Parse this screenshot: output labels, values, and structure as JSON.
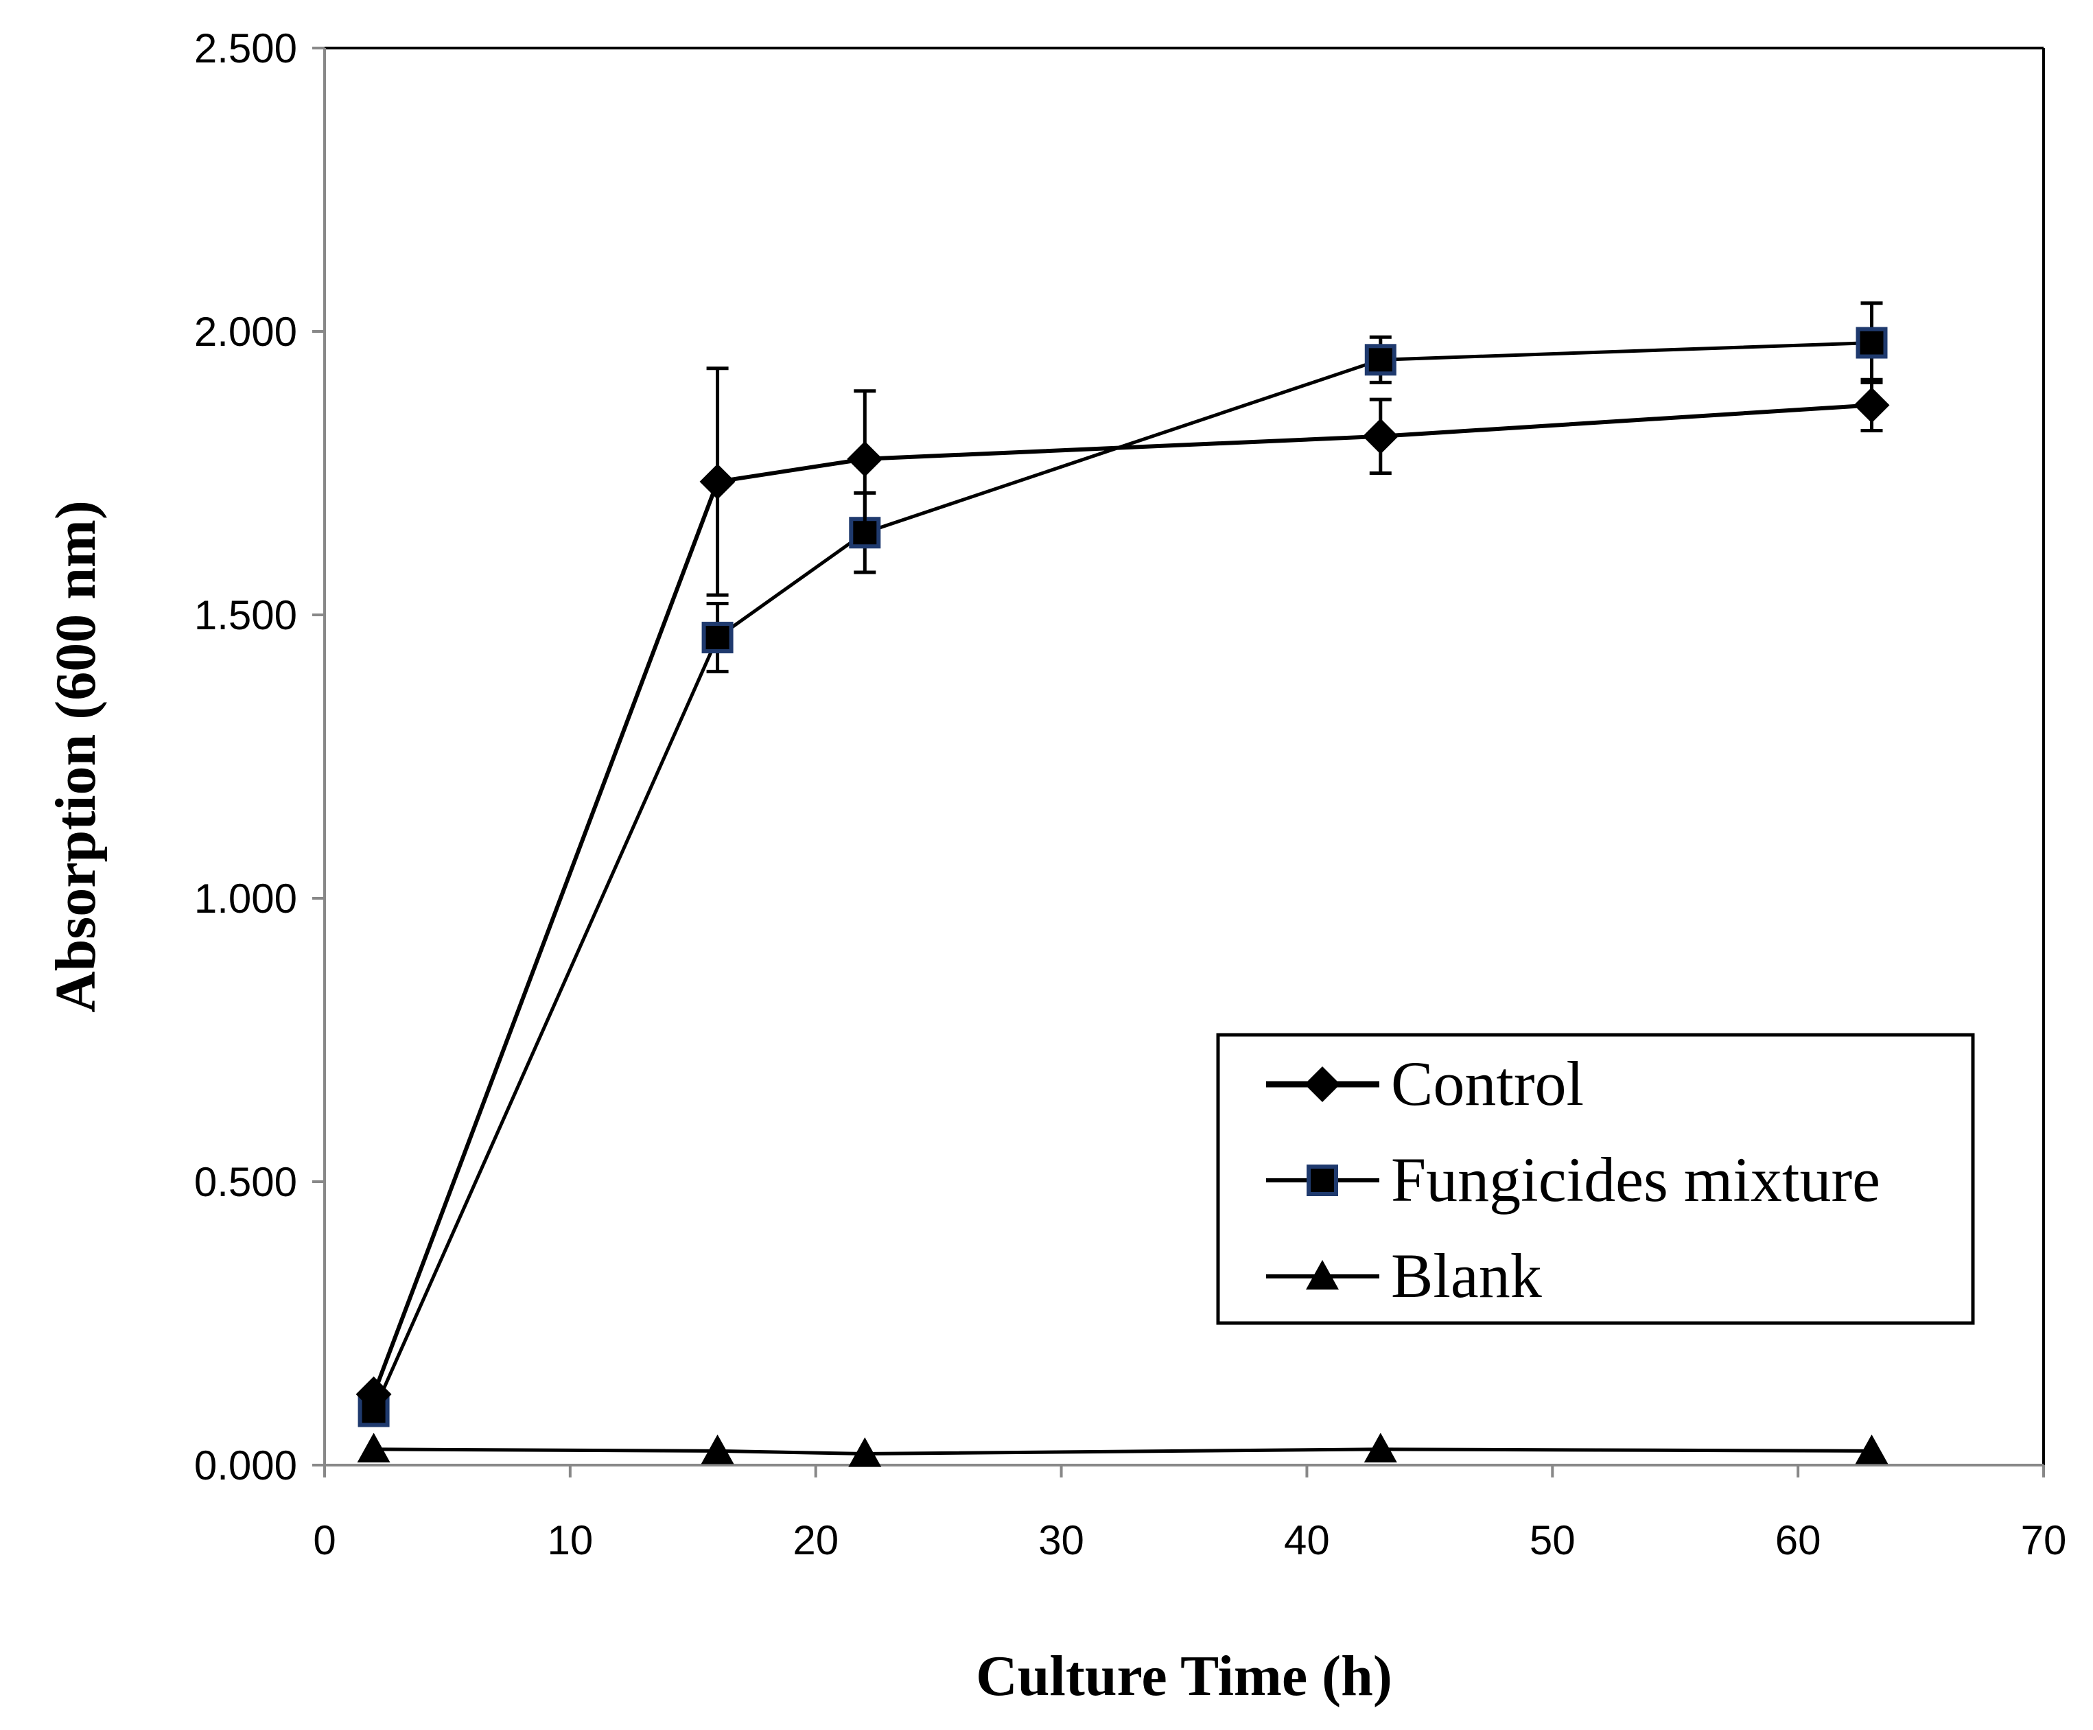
{
  "chart_data": {
    "type": "line",
    "title": "",
    "xlabel": "Culture Time (h)",
    "ylabel": "Absorption (600 nm)",
    "xlim": [
      0,
      70
    ],
    "ylim": [
      0,
      2.5
    ],
    "x_ticks": [
      0,
      10,
      20,
      30,
      40,
      50,
      60,
      70
    ],
    "y_ticks": [
      0,
      0.5,
      1.0,
      1.5,
      2.0,
      2.5
    ],
    "x_tick_labels": [
      "0",
      "10",
      "20",
      "30",
      "40",
      "50",
      "60",
      "70"
    ],
    "y_tick_labels": [
      "0.000",
      "0.500",
      "1.000",
      "1.500",
      "2.000",
      "2.500"
    ],
    "grid": false,
    "legend_position": "lower-right",
    "series": [
      {
        "name": "Control",
        "marker": "diamond",
        "color": "#000000",
        "x": [
          2,
          16,
          22,
          43,
          63
        ],
        "y": [
          0.125,
          1.735,
          1.775,
          1.815,
          1.87
        ],
        "error": [
          0.0,
          0.2,
          0.12,
          0.065,
          0.045
        ]
      },
      {
        "name": "Fungicides mixture",
        "marker": "square",
        "color": "#000000",
        "edge_color": "#1f3a6e",
        "x": [
          2,
          16,
          22,
          43,
          63
        ],
        "y": [
          0.095,
          1.46,
          1.645,
          1.95,
          1.98
        ],
        "error": [
          0.0,
          0.06,
          0.07,
          0.04,
          0.07
        ]
      },
      {
        "name": "Blank",
        "marker": "triangle",
        "color": "#000000",
        "x": [
          2,
          16,
          22,
          43,
          63
        ],
        "y": [
          0.028,
          0.025,
          0.02,
          0.028,
          0.025
        ],
        "error": [
          0,
          0,
          0,
          0,
          0
        ]
      }
    ]
  }
}
